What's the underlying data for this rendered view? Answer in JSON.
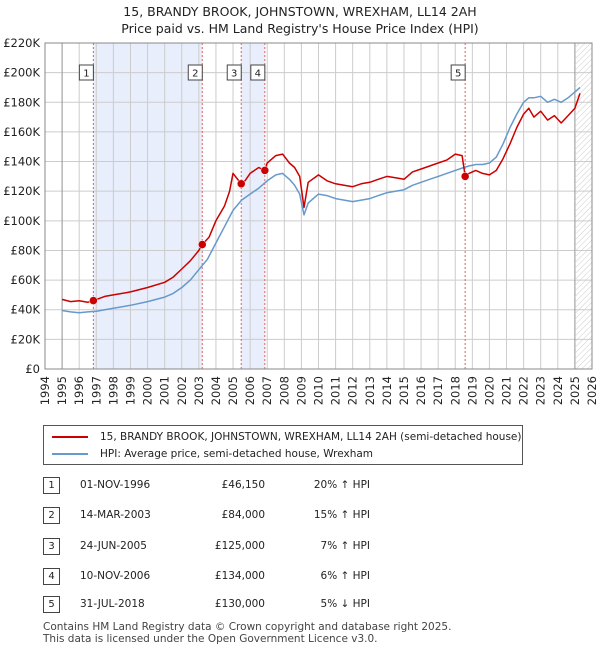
{
  "header": {
    "title_line1": "15, BRANDY BROOK, JOHNSTOWN, WREXHAM, LL14 2AH",
    "title_line2": "Price paid vs. HM Land Registry's House Price Index (HPI)"
  },
  "colors": {
    "price_line": "#cc0000",
    "hpi_line": "#6699cc",
    "shade": "#e8eefb",
    "grid": "#cccccc",
    "event_line": "#e06060"
  },
  "chart_data": {
    "type": "line",
    "x_domain": [
      1994.0,
      2026.0
    ],
    "ylim": [
      0,
      220000
    ],
    "y_ticks": [
      0,
      20000,
      40000,
      60000,
      80000,
      100000,
      120000,
      140000,
      160000,
      180000,
      200000,
      220000
    ],
    "y_tick_labels": [
      "£0",
      "£20K",
      "£40K",
      "£60K",
      "£80K",
      "£100K",
      "£120K",
      "£140K",
      "£160K",
      "£180K",
      "£200K",
      "£220K"
    ],
    "x_ticks": [
      1994,
      1995,
      1996,
      1997,
      1998,
      1999,
      2000,
      2001,
      2002,
      2003,
      2004,
      2005,
      2006,
      2007,
      2008,
      2009,
      2010,
      2011,
      2012,
      2013,
      2014,
      2015,
      2016,
      2017,
      2018,
      2019,
      2020,
      2021,
      2022,
      2023,
      2024,
      2025,
      2026
    ],
    "data_range": [
      1995.0,
      2025.5
    ],
    "forecast_from": 2025.0,
    "series": [
      {
        "name": "15, BRANDY BROOK, JOHNSTOWN, WREXHAM, LL14 2AH (semi-detached house)",
        "color": "#cc0000",
        "x": [
          1995.0,
          1995.5,
          1996.0,
          1996.5,
          1996.83,
          1997.5,
          1998.0,
          1999.0,
          2000.0,
          2001.0,
          2001.5,
          2002.0,
          2002.5,
          2003.0,
          2003.2,
          2003.6,
          2004.0,
          2004.5,
          2004.8,
          2005.0,
          2005.48,
          2005.7,
          2006.0,
          2006.5,
          2006.86,
          2007.0,
          2007.5,
          2007.9,
          2008.3,
          2008.6,
          2008.9,
          2009.15,
          2009.4,
          2010.0,
          2010.5,
          2011.0,
          2011.5,
          2012.0,
          2012.5,
          2013.0,
          2013.5,
          2014.0,
          2014.5,
          2015.0,
          2015.5,
          2016.0,
          2016.5,
          2017.0,
          2017.5,
          2018.0,
          2018.4,
          2018.58,
          2018.8,
          2019.2,
          2019.6,
          2020.0,
          2020.4,
          2020.8,
          2021.2,
          2021.6,
          2022.0,
          2022.3,
          2022.6,
          2023.0,
          2023.4,
          2023.8,
          2024.2,
          2024.6,
          2025.0,
          2025.3
        ],
        "values": [
          47000,
          45500,
          46000,
          45000,
          46150,
          49000,
          50000,
          52000,
          55000,
          58500,
          62000,
          67500,
          73000,
          80000,
          84000,
          89000,
          100000,
          110000,
          120000,
          132000,
          125000,
          127000,
          132000,
          136000,
          134000,
          139000,
          144000,
          145000,
          139000,
          136000,
          130000,
          109000,
          126000,
          131000,
          127000,
          125000,
          124000,
          123000,
          125000,
          126000,
          128000,
          130000,
          129000,
          128000,
          133000,
          135000,
          137000,
          139000,
          141000,
          145000,
          144000,
          130000,
          132000,
          134000,
          132000,
          131000,
          134000,
          142000,
          152000,
          163000,
          172000,
          176000,
          170000,
          174000,
          168000,
          171000,
          166000,
          171000,
          176000,
          186000
        ]
      },
      {
        "name": "HPI: Average price, semi-detached house, Wrexham",
        "color": "#6699cc",
        "x": [
          1995.0,
          1995.5,
          1996.0,
          1996.5,
          1997.0,
          1997.5,
          1998.0,
          1999.0,
          2000.0,
          2001.0,
          2001.5,
          2002.0,
          2002.5,
          2003.0,
          2003.5,
          2004.0,
          2004.5,
          2005.0,
          2005.5,
          2006.0,
          2006.5,
          2007.0,
          2007.5,
          2007.9,
          2008.3,
          2008.6,
          2008.9,
          2009.15,
          2009.4,
          2010.0,
          2010.5,
          2011.0,
          2011.5,
          2012.0,
          2012.5,
          2013.0,
          2013.5,
          2014.0,
          2014.5,
          2015.0,
          2015.5,
          2016.0,
          2016.5,
          2017.0,
          2017.5,
          2018.0,
          2018.5,
          2018.8,
          2019.2,
          2019.6,
          2020.0,
          2020.4,
          2020.8,
          2021.2,
          2021.6,
          2022.0,
          2022.3,
          2022.6,
          2023.0,
          2023.4,
          2023.8,
          2024.2,
          2024.6,
          2025.0,
          2025.3
        ],
        "values": [
          39500,
          38500,
          38000,
          38500,
          39000,
          40000,
          41000,
          43000,
          45500,
          48500,
          51000,
          55000,
          60000,
          67000,
          74000,
          85000,
          96000,
          107000,
          114000,
          118000,
          122000,
          127000,
          131000,
          132000,
          128000,
          124000,
          118000,
          104000,
          112000,
          118000,
          117000,
          115000,
          114000,
          113000,
          114000,
          115000,
          117000,
          119000,
          120000,
          121000,
          124000,
          126000,
          128000,
          130000,
          132000,
          134000,
          136000,
          137000,
          138000,
          138000,
          139000,
          143000,
          152000,
          163000,
          172000,
          180000,
          183000,
          183000,
          184000,
          180000,
          182000,
          180000,
          183000,
          187000,
          190000
        ]
      }
    ],
    "events": [
      {
        "n": "1",
        "x": 1996.83,
        "value": 46150
      },
      {
        "n": "2",
        "x": 2003.2,
        "value": 84000
      },
      {
        "n": "3",
        "x": 2005.48,
        "value": 125000
      },
      {
        "n": "4",
        "x": 2006.86,
        "value": 134000
      },
      {
        "n": "5",
        "x": 2018.58,
        "value": 130000
      }
    ]
  },
  "legend": {
    "price_label": "15, BRANDY BROOK, JOHNSTOWN, WREXHAM, LL14 2AH (semi-detached house)",
    "hpi_label": "HPI: Average price, semi-detached house, Wrexham"
  },
  "sales": [
    {
      "n": "1",
      "date": "01-NOV-1996",
      "price": "£46,150",
      "hpi": "20% ↑ HPI"
    },
    {
      "n": "2",
      "date": "14-MAR-2003",
      "price": "£84,000",
      "hpi": "15% ↑ HPI"
    },
    {
      "n": "3",
      "date": "24-JUN-2005",
      "price": "£125,000",
      "hpi": "7% ↑ HPI"
    },
    {
      "n": "4",
      "date": "10-NOV-2006",
      "price": "£134,000",
      "hpi": "6% ↑ HPI"
    },
    {
      "n": "5",
      "date": "31-JUL-2018",
      "price": "£130,000",
      "hpi": "5% ↓ HPI"
    }
  ],
  "footer": {
    "line1": "Contains HM Land Registry data © Crown copyright and database right 2025.",
    "line2": "This data is licensed under the Open Government Licence v3.0."
  }
}
